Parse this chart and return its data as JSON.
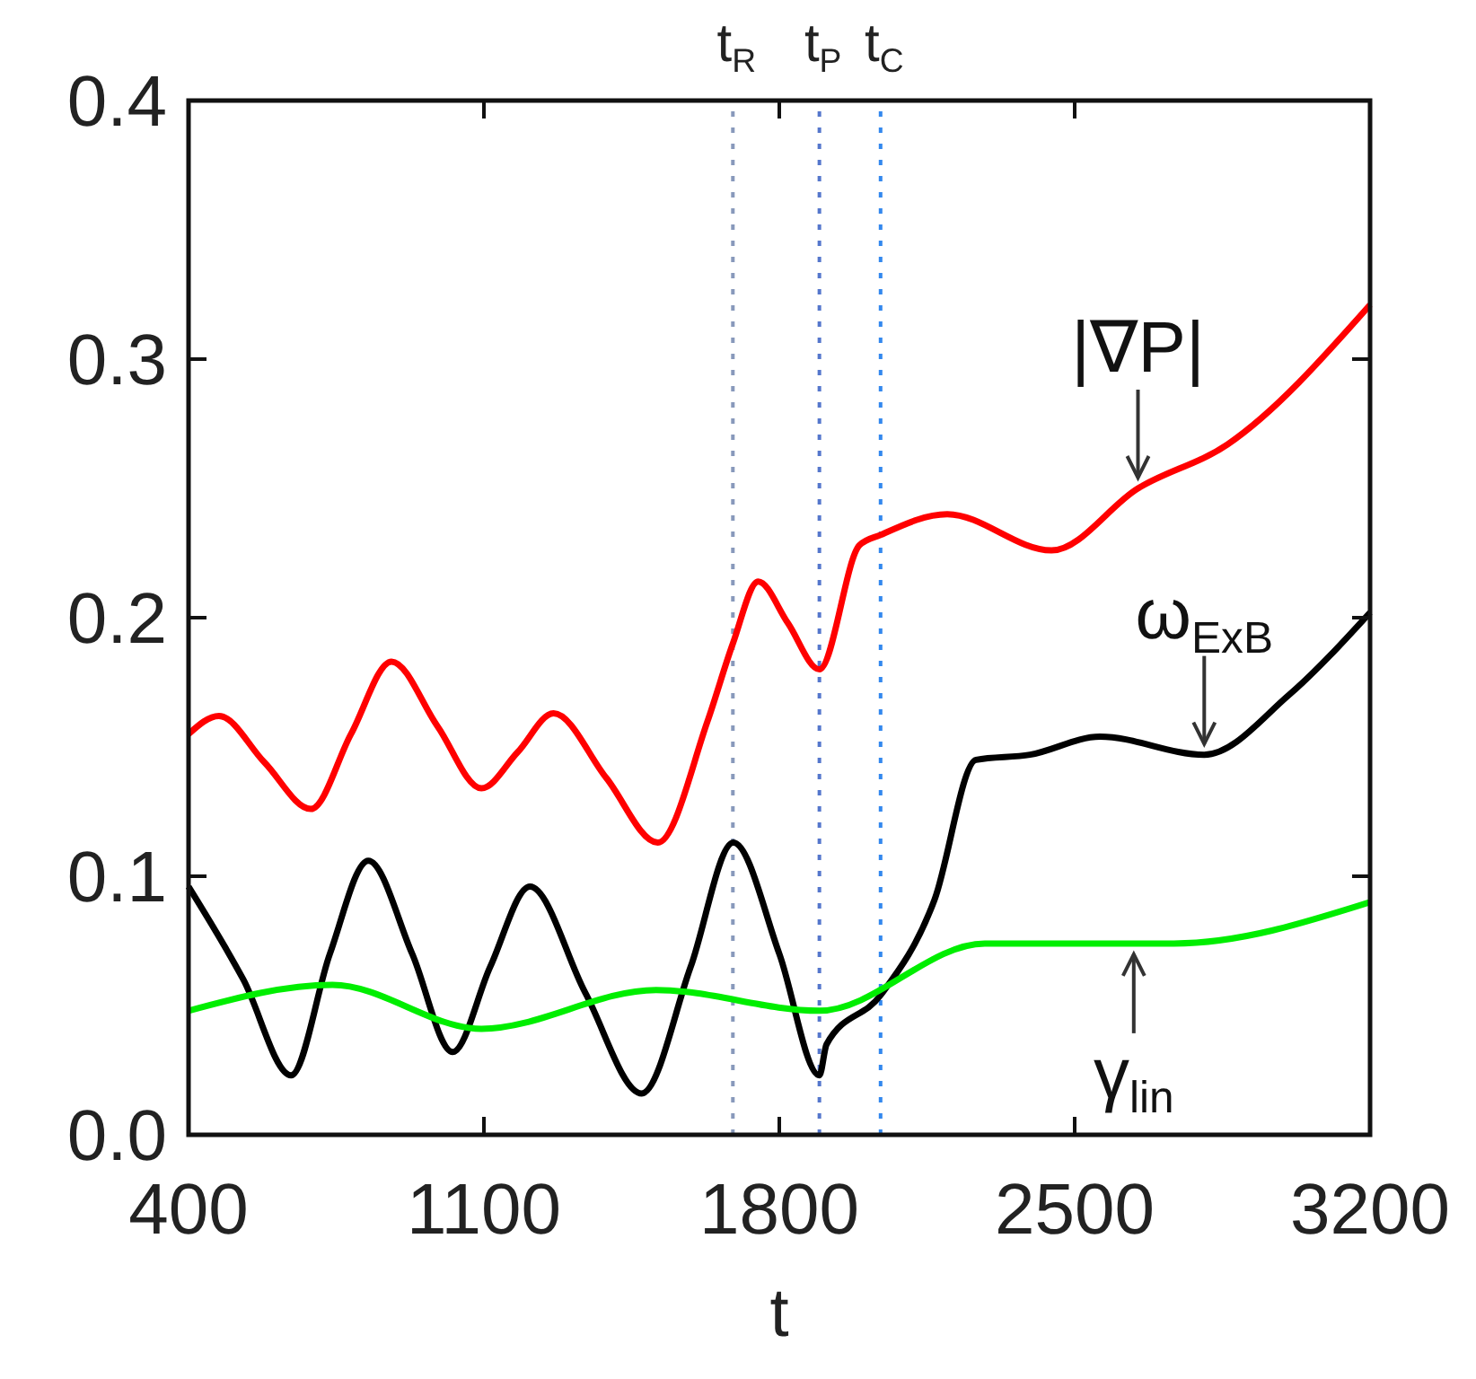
{
  "chart_data": {
    "type": "line",
    "xlabel": "t",
    "xlim": [
      400,
      3200
    ],
    "xticks": [
      400,
      1100,
      1800,
      2500,
      3200
    ],
    "ylim": [
      0,
      0.4
    ],
    "yticks": [
      {
        "value": 0,
        "label": "0.0"
      },
      {
        "value": 0.1,
        "label": "0.1"
      },
      {
        "value": 0.2,
        "label": "0.2"
      },
      {
        "value": 0.3,
        "label": "0.3"
      },
      {
        "value": 0.4,
        "label": "0.4"
      }
    ],
    "grid": false,
    "marker": "none",
    "line_style": "solid",
    "series": [
      {
        "color": "#ff0000",
        "x": [
          400,
          472,
          580,
          690,
          785,
          881,
          990,
          1094,
          1180,
          1265,
          1390,
          1512,
          1630,
          1690,
          1750,
          1820,
          1895,
          1990,
          2040,
          2198,
          2445,
          2650,
          2862,
          3200
        ],
        "values": [
          0.155,
          0.162,
          0.144,
          0.126,
          0.155,
          0.183,
          0.158,
          0.134,
          0.148,
          0.163,
          0.138,
          0.113,
          0.16,
          0.19,
          0.214,
          0.198,
          0.18,
          0.228,
          0.232,
          0.24,
          0.226,
          0.25,
          0.267,
          0.321
        ]
      },
      {
        "color": "#000000",
        "x": [
          400,
          530,
          643,
          735,
          826,
          930,
          1026,
          1115,
          1209,
          1340,
          1474,
          1590,
          1691,
          1800,
          1895,
          1912,
          2040,
          2168,
          2266,
          2394,
          2560,
          2807,
          3007,
          3200
        ],
        "values": [
          0.096,
          0.06,
          0.023,
          0.07,
          0.106,
          0.07,
          0.032,
          0.065,
          0.096,
          0.055,
          0.016,
          0.065,
          0.113,
          0.07,
          0.023,
          0.035,
          0.054,
          0.091,
          0.145,
          0.147,
          0.154,
          0.147,
          0.17,
          0.202
        ]
      },
      {
        "color": "#00ee00",
        "x": [
          400,
          741,
          1094,
          1508,
          1895,
          2287,
          2735,
          3200
        ],
        "values": [
          0.048,
          0.058,
          0.041,
          0.056,
          0.048,
          0.074,
          0.074,
          0.09
        ]
      }
    ],
    "ref_lines": [
      {
        "axis": "x",
        "value": 1690,
        "label": "t$_{R}$",
        "color": "#8899bb",
        "line_style": "dotted"
      },
      {
        "axis": "x",
        "value": 1895,
        "label": "t$_{P}$",
        "color": "#5577cc",
        "line_style": "dotted"
      },
      {
        "axis": "x",
        "value": 2040,
        "label": "t$_{C}$",
        "color": "#3388ee",
        "line_style": "dotted"
      }
    ],
    "annotations": [
      {
        "text": "|∇P|",
        "x": 2650,
        "y": 0.25
      },
      {
        "text": "ω$_{ExB}$",
        "x": 2807,
        "y": 0.147
      },
      {
        "text": "γ$_{lin}$",
        "x": 2640,
        "y": 0.074
      }
    ]
  }
}
